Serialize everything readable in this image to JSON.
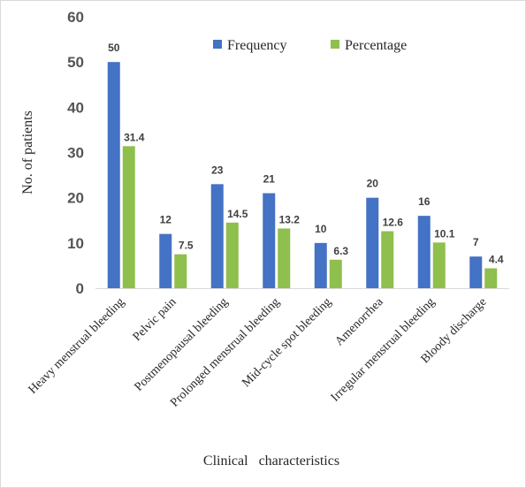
{
  "chart_data": {
    "type": "bar",
    "title": "",
    "xlabel": "Clinical   characteristics",
    "ylabel": "No. of patients",
    "ylim": [
      0,
      60
    ],
    "yticks": [
      0,
      10,
      20,
      30,
      40,
      50,
      60
    ],
    "grid": false,
    "legend_position": "top-right",
    "categories": [
      "Heavy menstrual bleeding",
      "Pelvic pain",
      "Postmenopausal bleeding",
      "Prolonged menstrual bleeding",
      "Mid-cycle spot bleeding",
      "Amenorrhea",
      "Irregular menstrual bleeding",
      "Bloody discharge"
    ],
    "series": [
      {
        "name": "Frequency",
        "color": "#4472c4",
        "values": [
          50,
          12,
          23,
          21,
          10,
          20,
          16,
          7
        ]
      },
      {
        "name": "Percentage",
        "color": "#8fbf4d",
        "values": [
          31.4,
          7.5,
          14.5,
          13.2,
          6.3,
          12.6,
          10.1,
          4.4
        ]
      }
    ]
  }
}
